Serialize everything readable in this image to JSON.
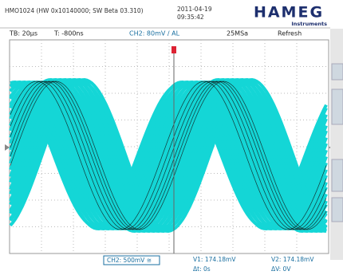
{
  "header": {
    "device": "HMO1024 (HW 0x10140000; SW Beta 03.310)",
    "date": "2011-04-19",
    "time": "09:35:42",
    "logo": "HAMEG",
    "logo_sub": "Instruments"
  },
  "status": {
    "timebase": "TB: 20µs",
    "trigger_time": "T: -800ns",
    "channel": "CH2: 80mV / AL",
    "sample_rate": "25MSa",
    "mode": "Refresh"
  },
  "footer": {
    "channel_scale": "CH2: 500mV ≅",
    "v1": "V1: 174.18mV",
    "v2": "V2: 174.18mV",
    "dt": "Δt: 0s",
    "dv": "ΔV: 0V"
  }
}
